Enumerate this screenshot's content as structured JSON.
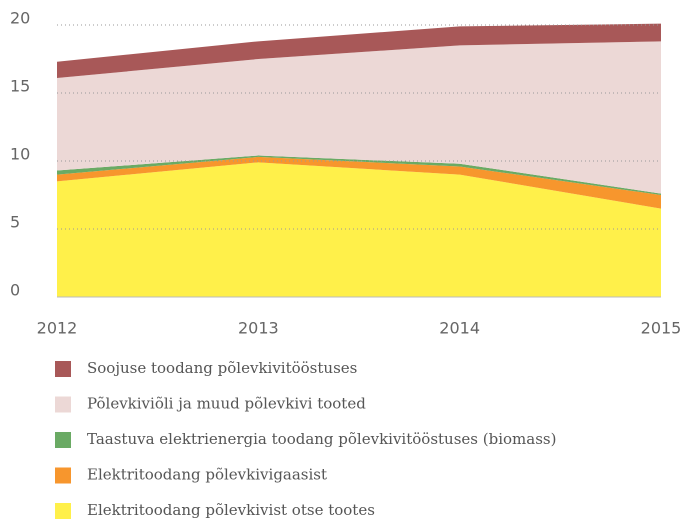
{
  "chart_data": {
    "type": "stacked-area",
    "categories": [
      "2012",
      "2013",
      "2014",
      "2015"
    ],
    "series": [
      {
        "name": "Elektritoodang põlevkivist otse tootes",
        "color": "#fff04a",
        "values": [
          8.5,
          9.9,
          9.0,
          6.5
        ]
      },
      {
        "name": "Elektritoodang põlevkivigaasist",
        "color": "#f7962d",
        "values": [
          0.5,
          0.4,
          0.6,
          1.0
        ]
      },
      {
        "name": "Taastuva elektrienergia toodang põlevkivitööstuses (biomass)",
        "color": "#6aaa64",
        "values": [
          0.3,
          0.1,
          0.2,
          0.1
        ]
      },
      {
        "name": "Põlevkiviõli ja muud põlevkivi tooted",
        "color": "#ecd8d6",
        "values": [
          6.8,
          7.1,
          8.7,
          11.2
        ]
      },
      {
        "name": "Soojuse toodang põlevkivitööstuses",
        "color": "#a85858",
        "values": [
          1.2,
          1.3,
          1.4,
          1.3
        ]
      }
    ],
    "ylim": [
      0,
      20
    ],
    "yticks": [
      0,
      5,
      10,
      15,
      20
    ],
    "grid": true,
    "legend": "bottom"
  }
}
